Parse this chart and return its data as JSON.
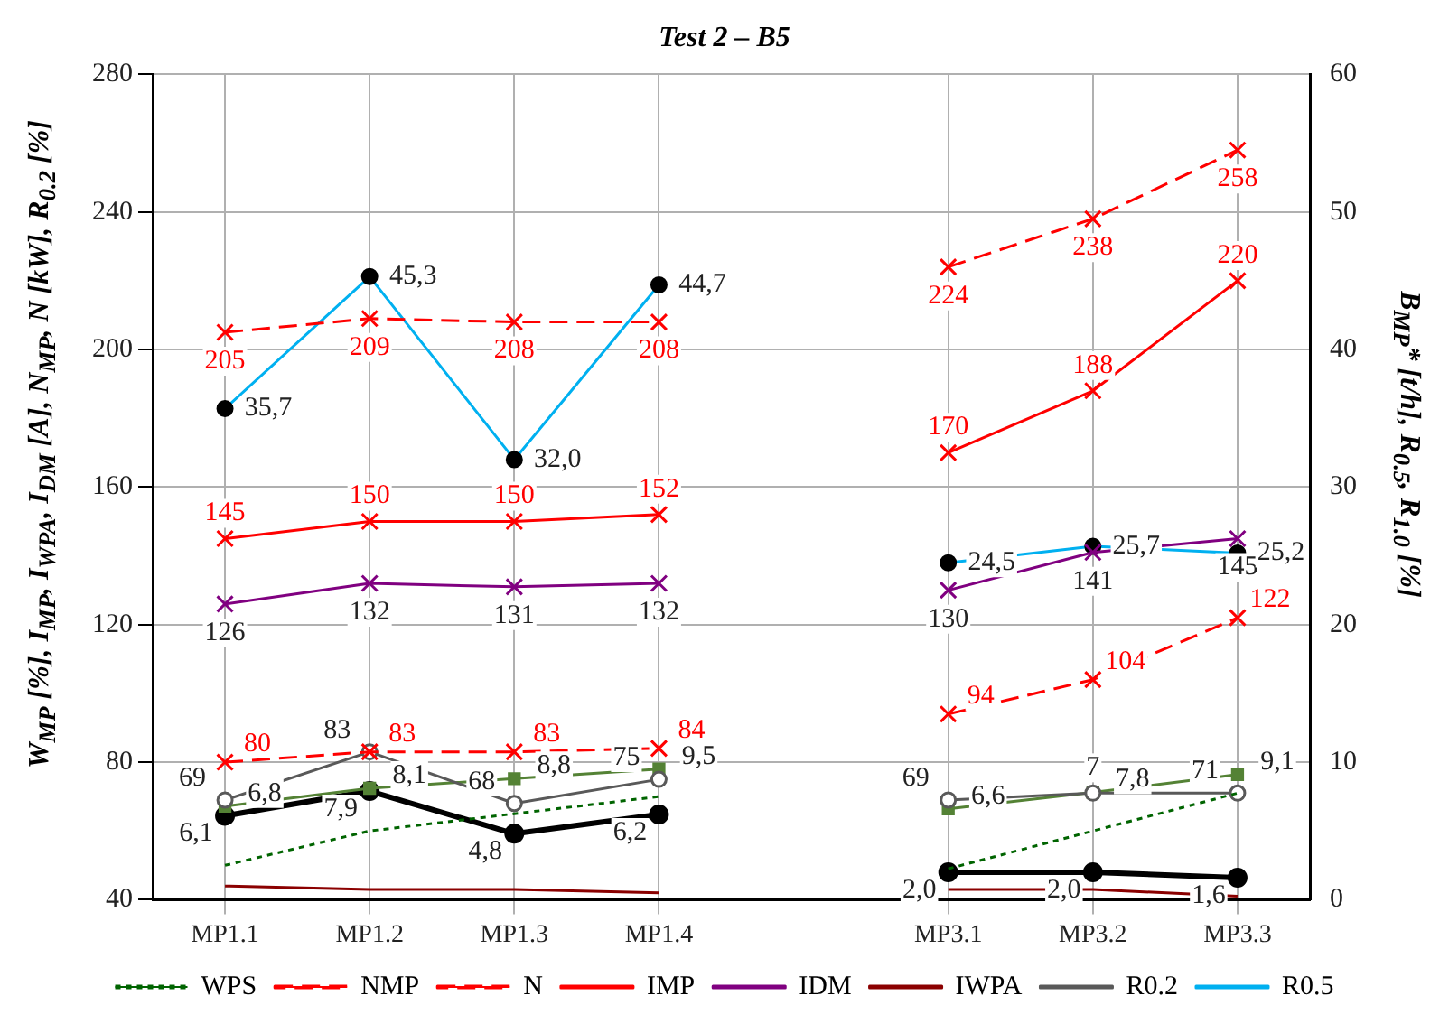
{
  "chart_data": {
    "type": "line",
    "title": "Test 2 – B5",
    "ylabel": "W$_{MP}$ [%], I$_{MP}$, I$_{WPA}$, I$_{DM}$ [A], N$_{MP}$, N [kW], R$_{0.2}$ [%]",
    "y2label": "B$_{MP}$* [t/h], R$_{0.5}$, R$_{1.0}$ [%]",
    "categories": [
      "MP1.1",
      "MP1.2",
      "MP1.3",
      "MP1.4",
      null,
      "MP3.1",
      "MP3.2",
      "MP3.3"
    ],
    "ylim": [
      40,
      280
    ],
    "yticks": [
      40,
      80,
      120,
      160,
      200,
      240,
      280
    ],
    "y2lim": [
      0,
      60
    ],
    "y2ticks": [
      0,
      10,
      20,
      30,
      40,
      50,
      60
    ],
    "grid": true,
    "legend": "bottom",
    "annotations": [
      {
        "text": "7",
        "x": "MP3.2",
        "y": 71
      }
    ],
    "series": [
      {
        "name": "WPS",
        "color": "#006400",
        "line_style": "dotted",
        "marker": "none",
        "values": [
          50,
          60,
          65,
          70,
          null,
          49,
          60,
          71
        ]
      },
      {
        "name": "NMP",
        "color": "#ff0000",
        "line_style": "dashed",
        "marker": "cross",
        "values": [
          80,
          83,
          83,
          84,
          null,
          94,
          104,
          122
        ],
        "value_labels": [
          "80",
          "83",
          "83",
          "84",
          null,
          "94",
          "104",
          "122"
        ]
      },
      {
        "name": "N",
        "color": "#ff0000",
        "line_style": "dashed",
        "marker": "cross",
        "values": [
          205,
          209,
          208,
          208,
          null,
          224,
          238,
          258
        ],
        "value_labels": [
          "205",
          "209",
          "208",
          "208",
          null,
          "224",
          "238",
          "258"
        ]
      },
      {
        "name": "IMP",
        "color": "#ff0000",
        "line_style": "solid",
        "marker": "cross",
        "values": [
          145,
          150,
          150,
          152,
          null,
          170,
          188,
          220
        ],
        "value_labels": [
          "145",
          "150",
          "150",
          "152",
          null,
          "170",
          "188",
          "220"
        ]
      },
      {
        "name": "IDM",
        "color": "#800080",
        "line_style": "solid",
        "marker": "cross",
        "values": [
          126,
          132,
          131,
          132,
          null,
          130,
          141,
          145
        ],
        "value_labels": [
          "126",
          "132",
          "131",
          "132",
          null,
          "130",
          "141",
          "145"
        ]
      },
      {
        "name": "IWPA",
        "color": "#8b0000",
        "line_style": "solid",
        "marker": "none",
        "values": [
          44,
          43,
          43,
          42,
          null,
          43,
          43,
          41
        ]
      },
      {
        "name": "R0.2",
        "color": "#595959",
        "line_style": "solid",
        "marker": "circle",
        "values": [
          69,
          83,
          68,
          75,
          null,
          69,
          71,
          71
        ],
        "value_labels": [
          "69",
          "83",
          "68",
          "75",
          null,
          "69",
          null,
          "71"
        ]
      },
      {
        "name": "R0.5",
        "color": "#00b0f0",
        "line_style": "solid",
        "marker": "circle",
        "axis": "y2",
        "values": [
          35.7,
          45.3,
          32.0,
          44.7,
          null,
          24.5,
          25.7,
          25.2
        ],
        "value_labels": [
          "35,7",
          "45,3",
          "32,0",
          "44,7",
          null,
          "24,5",
          "25,7",
          "25,2"
        ]
      },
      {
        "color": "#548235",
        "line_style": "solid",
        "marker": "square",
        "axis": "y2",
        "values": [
          6.8,
          8.1,
          8.8,
          9.5,
          null,
          6.6,
          7.8,
          9.1
        ],
        "value_labels": [
          "6,8",
          "8,1",
          "8,8",
          "9,5",
          null,
          "6,6",
          "7,8",
          "9,1"
        ]
      },
      {
        "color": "#000000",
        "line_style": "solid",
        "marker": "circle",
        "axis": "y2",
        "values": [
          6.1,
          7.9,
          4.8,
          6.2,
          null,
          2.0,
          2.0,
          1.6
        ],
        "value_labels": [
          "6,1",
          "7,9",
          "4,8",
          "6,2",
          null,
          "2,0",
          "2,0",
          "1,6"
        ]
      }
    ]
  }
}
